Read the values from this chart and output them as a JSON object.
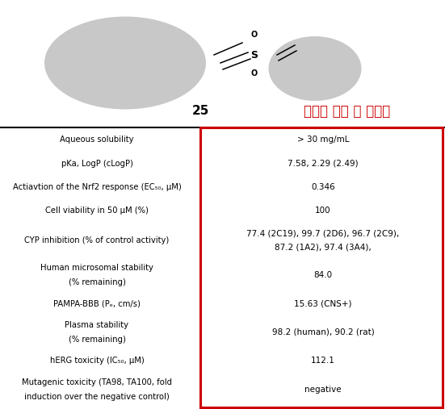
{
  "title_number": "25",
  "title_korean": "우수한 효능 및 약물성",
  "rows": [
    {
      "label": "Aqueous solubility",
      "label2": null,
      "value": "> 30 mg/mL",
      "value2": null
    },
    {
      "label": "pKa, LogP (cLogP)",
      "label2": null,
      "value": "7.58, 2.29 (2.49)",
      "value2": null
    },
    {
      "label": "Actiavtion of the Nrf2 response (EC₅₀, μM)",
      "label2": null,
      "value": "0.346",
      "value2": null
    },
    {
      "label": "Cell viability in 50 μM (%)",
      "label2": null,
      "value": "100",
      "value2": null
    },
    {
      "label": "CYP inhibition (% of control activity)",
      "label2": null,
      "value": "77.4 (2C19), 99.7 (2D6), 96.7 (2C9),",
      "value2": "87.2 (1A2), 97.4 (3A4),"
    },
    {
      "label": "Human microsomal stability",
      "label2": "(% remaining)",
      "value": "84.0",
      "value2": null
    },
    {
      "label": "PAMPA-BBB (Pₑ, cm/s)",
      "label2": null,
      "value": "15.63 (CNS+)",
      "value2": null
    },
    {
      "label": "Plasma stability",
      "label2": "(% remaining)",
      "value": "98.2 (human), 90.2 (rat)",
      "value2": null
    },
    {
      "label": "hERG toxicity (IC₅₀, μM)",
      "label2": null,
      "value": "112.1",
      "value2": null
    },
    {
      "label": "Mutagenic toxicity (TA98, TA100, fold",
      "label2": "induction over the negative control)",
      "value": "negative",
      "value2": null
    }
  ],
  "background_color": "#ffffff",
  "box_color": "#cc0000",
  "header_line_color": "#000000",
  "label_fontsize": 7.2,
  "value_fontsize": 7.5,
  "korean_color": "#cc0000",
  "korean_fontsize": 12,
  "number_fontsize": 11
}
